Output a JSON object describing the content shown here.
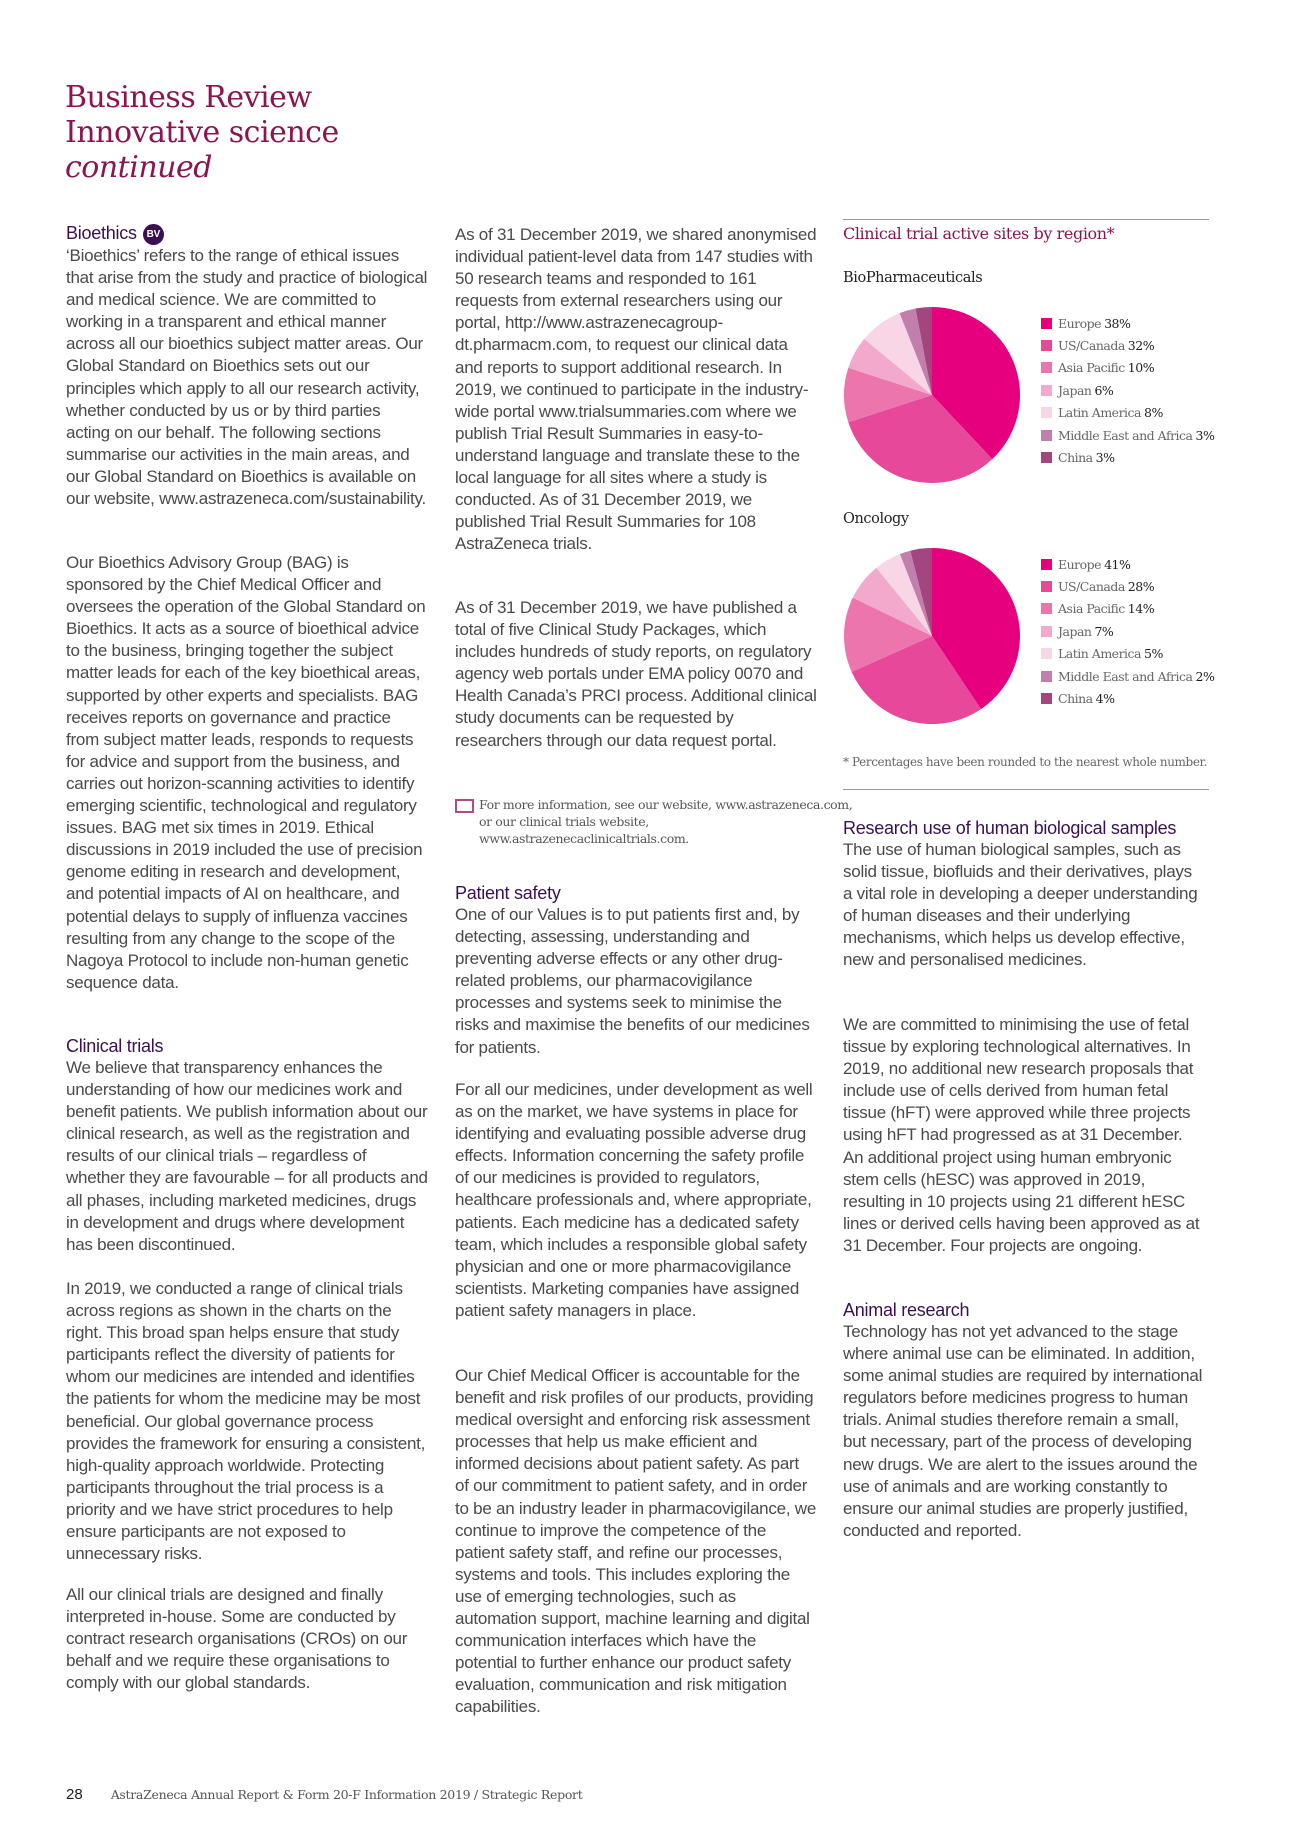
{
  "header": {
    "line1": "Business Review",
    "line2": "Innovative science",
    "line3": "continued"
  },
  "col1": {
    "bioethics_heading": "Bioethics",
    "bioethics_badge": "BV",
    "p1": "‘Bioethics’ refers to the range of ethical issues that arise from the study and practice of biological and medical science. We are committed to working in a transparent and ethical manner across all our bioethics subject matter areas. Our Global Standard on Bioethics sets out our principles which apply to all our research activity, whether conducted by us or by third parties acting on our behalf. The following sections summarise our activities in the main areas, and our Global Standard on Bioethics is available on our website, www.astrazeneca.com/sustainability.",
    "p2": "Our Bioethics Advisory Group (BAG) is sponsored by the Chief Medical Officer and oversees the operation of the Global Standard on Bioethics. It acts as a source of bioethical advice to the business, bringing together the subject matter leads for each of the key bioethical areas, supported by other experts and specialists. BAG receives reports on governance and practice from subject matter leads, responds to requests for advice and support from the business, and carries out horizon-scanning activities to identify emerging scientific, technological and regulatory issues. BAG met six times in 2019. Ethical discussions in 2019 included the use of precision genome editing in research and development, and potential impacts of AI on healthcare, and potential delays to supply of influenza vaccines resulting from any change to the scope of the Nagoya Protocol to include non-human genetic sequence data.",
    "clinical_heading": "Clinical trials",
    "p3": "We believe that transparency enhances the understanding of how our medicines work and benefit patients. We publish information about our clinical research, as well as the registration and results of our clinical trials – regardless of whether they are favourable – for all products and all phases, including marketed medicines, drugs in development and drugs where development has been discontinued.",
    "p4": "In 2019, we conducted a range of clinical trials across regions as shown in the charts on the right. This broad span helps ensure that study participants reflect the diversity of patients for whom our medicines are intended and identifies the patients for whom the medicine may be most beneficial. Our global governance process provides the framework for ensuring a consistent, high-quality approach worldwide. Protecting participants throughout the trial process is a priority and we have strict procedures to help ensure participants are not exposed to unnecessary risks.",
    "p5": "All our clinical trials are designed and finally interpreted in-house. Some are conducted by contract research organisations (CROs) on our behalf and we require these organisations to comply with our global standards."
  },
  "col2": {
    "p1": "As of 31 December 2019, we shared anonymised individual patient-level data from 147 studies with 50 research teams and responded to 161 requests from external researchers using our portal, http://www.astrazenecagroup-dt.pharmacm.com, to request our clinical data and reports to support additional research. In 2019, we continued to participate in the industry-wide portal www.trialsummaries.com where we publish Trial Result Summaries in easy-to-understand language and translate these to the local language for all sites where a study is conducted. As of 31 December 2019, we published Trial Result Summaries for 108 AstraZeneca trials.",
    "p2": "As of 31 December 2019, we have published a total of five Clinical Study Packages, which includes hundreds of study reports, on regulatory agency web portals under EMA policy 0070 and Health Canada’s PRCI process. Additional clinical study documents can be requested by researchers through our data request portal.",
    "info": "For more information, see our website, www.astrazeneca.com, or our clinical trials website, www.astrazenecaclinicaltrials.com.",
    "safety_heading": "Patient safety",
    "p3": "One of our Values is to put patients first and, by detecting, assessing, understanding and preventing adverse effects or any other drug-related problems, our pharmacovigilance processes and systems seek to minimise the risks and maximise the benefits of our medicines for patients.",
    "p4": "For all our medicines, under development as well as on the market, we have systems in place for identifying and evaluating possible adverse drug effects. Information concerning the safety profile of our medicines is provided to regulators, healthcare professionals and, where appropriate, patients. Each medicine has a dedicated safety team, which includes a responsible global safety physician and one or more pharmacovigilance scientists. Marketing companies have assigned patient safety managers in place.",
    "p5": "Our Chief Medical Officer is accountable for the benefit and risk profiles of our products, providing medical oversight and enforcing risk assessment processes that help us make efficient and informed decisions about patient safety. As part of our commitment to patient safety, and in order to be an industry leader in pharmacovigilance, we continue to improve the competence of the patient safety staff, and refine our processes, systems and tools. This includes exploring the use of emerging technologies, such as automation support, machine learning and digital communication interfaces which have the potential to further enhance our product safety evaluation, communication and risk mitigation capabilities."
  },
  "col3": {
    "research_heading": "Research use of human biological samples",
    "p1": "The use of human biological samples, such as solid tissue, biofluids and their derivatives, plays a vital role in developing a deeper understanding of human diseases and their underlying mechanisms, which helps us develop effective, new and personalised medicines.",
    "p2": "We are committed to minimising the use of fetal tissue by exploring technological alternatives. In 2019, no additional new research proposals that include use of cells derived from human fetal tissue (hFT) were approved while three projects using hFT had progressed as at 31 December. An additional project using human embryonic stem cells (hESC) was approved in 2019, resulting in 10 projects using 21 different hESC lines or derived cells having been approved as at 31 December. Four projects are ongoing.",
    "animal_heading": "Animal research",
    "p3": "Technology has not yet advanced to the stage where animal use can be eliminated. In addition, some animal studies are required by international regulators before medicines progress to human trials. Animal studies therefore remain a small, but necessary, part of the process of developing new drugs. We are alert to the issues around the use of animals and are working constantly to ensure our animal studies are properly justified, conducted and reported."
  },
  "chart_data": [
    {
      "type": "pie",
      "title": "Clinical trial active sites by region*",
      "subtitle": "BioPharmaceuticals",
      "categories": [
        "Europe",
        "US/Canada",
        "Asia Pacific",
        "Japan",
        "Latin America",
        "Middle East and Africa",
        "China"
      ],
      "values": [
        38,
        32,
        10,
        6,
        8,
        3,
        3
      ],
      "labels": [
        "38%",
        "32%",
        "10%",
        "6%",
        "8%",
        "3%",
        "3%"
      ],
      "colors": [
        "#e6007e",
        "#e8489a",
        "#ec75ae",
        "#f3a9cb",
        "#f8d6e6",
        "#c27fae",
        "#a3467f"
      ],
      "legend": "right"
    },
    {
      "type": "pie",
      "subtitle": "Oncology",
      "categories": [
        "Europe",
        "US/Canada",
        "Asia Pacific",
        "Japan",
        "Latin America",
        "Middle East and Africa",
        "China"
      ],
      "values": [
        41,
        28,
        14,
        7,
        5,
        2,
        4
      ],
      "labels": [
        "41%",
        "28%",
        "14%",
        "7%",
        "5%",
        "2%",
        "4%"
      ],
      "colors": [
        "#e6007e",
        "#e8489a",
        "#ec75ae",
        "#f3a9cb",
        "#f8d6e6",
        "#c27fae",
        "#a3467f"
      ],
      "legend": "right"
    }
  ],
  "chart_footnote": "* Percentages have been rounded to the nearest whole number.",
  "footer": {
    "page": "28",
    "report": "AstraZeneca Annual Report & Form 20-F Information 2019 / Strategic Report"
  }
}
